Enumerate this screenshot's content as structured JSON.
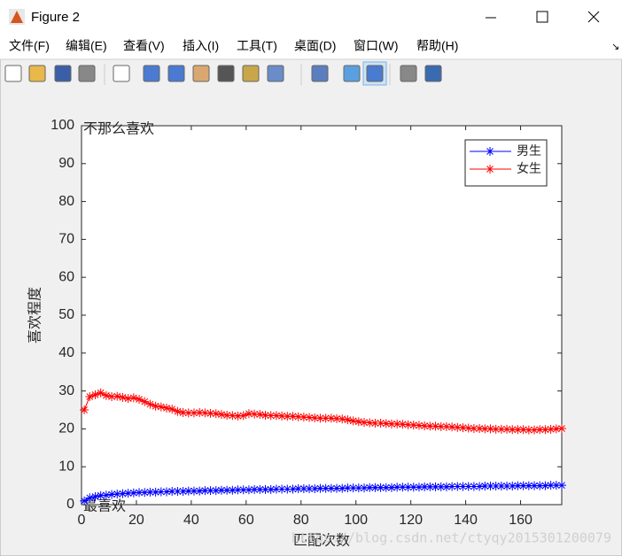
{
  "window": {
    "title": "Figure 2",
    "menu": [
      "文件(F)",
      "编辑(E)",
      "查看(V)",
      "插入(I)",
      "工具(T)",
      "桌面(D)",
      "窗口(W)",
      "帮助(H)"
    ],
    "watermark": "https://blog.csdn.net/ctyqy2015301200079"
  },
  "chart_data": {
    "type": "line",
    "xlabel": "匹配次数",
    "ylabel": "喜欢程度",
    "annotations": [
      "不那么喜欢",
      "最喜欢"
    ],
    "xlim": [
      0,
      175
    ],
    "xticks": [
      0,
      20,
      40,
      60,
      80,
      100,
      120,
      140,
      160
    ],
    "ylim": [
      0,
      100
    ],
    "yticks": [
      0,
      10,
      20,
      30,
      40,
      50,
      60,
      70,
      80,
      90,
      100
    ],
    "legend": "northeast",
    "marker": "*",
    "x": [
      1,
      3,
      5,
      7,
      9,
      11,
      13,
      15,
      17,
      19,
      21,
      23,
      25,
      27,
      29,
      31,
      33,
      35,
      37,
      39,
      41,
      43,
      45,
      47,
      49,
      51,
      53,
      55,
      57,
      59,
      61,
      63,
      65,
      67,
      69,
      71,
      73,
      75,
      77,
      79,
      81,
      83,
      85,
      87,
      89,
      91,
      93,
      95,
      97,
      99,
      101,
      103,
      105,
      107,
      109,
      111,
      113,
      115,
      117,
      119,
      121,
      123,
      125,
      127,
      129,
      131,
      133,
      135,
      137,
      139,
      141,
      143,
      145,
      147,
      149,
      151,
      153,
      155,
      157,
      159,
      161,
      163,
      165,
      167,
      169,
      171,
      173,
      175
    ],
    "series": [
      {
        "name": "男生",
        "color": "#0000ff",
        "values": [
          1.0,
          1.8,
          2.1,
          2.4,
          2.5,
          2.7,
          2.8,
          2.9,
          3.0,
          3.1,
          3.2,
          3.2,
          3.3,
          3.3,
          3.4,
          3.4,
          3.5,
          3.5,
          3.5,
          3.6,
          3.6,
          3.6,
          3.7,
          3.7,
          3.7,
          3.8,
          3.8,
          3.8,
          3.9,
          3.9,
          3.9,
          4.0,
          4.0,
          4.0,
          4.0,
          4.1,
          4.1,
          4.1,
          4.1,
          4.2,
          4.2,
          4.2,
          4.2,
          4.3,
          4.3,
          4.3,
          4.3,
          4.3,
          4.4,
          4.4,
          4.4,
          4.4,
          4.5,
          4.5,
          4.5,
          4.5,
          4.5,
          4.6,
          4.6,
          4.6,
          4.6,
          4.6,
          4.7,
          4.7,
          4.7,
          4.7,
          4.7,
          4.8,
          4.8,
          4.8,
          4.8,
          4.8,
          4.8,
          4.9,
          4.9,
          4.9,
          4.9,
          4.9,
          4.9,
          5.0,
          5.0,
          5.0,
          5.0,
          5.0,
          5.0,
          5.1,
          5.1,
          5.1
        ]
      },
      {
        "name": "女生",
        "color": "#ff0000",
        "values": [
          25.0,
          28.5,
          29.0,
          29.5,
          28.8,
          28.5,
          28.6,
          28.3,
          28.0,
          28.2,
          27.8,
          27.2,
          26.5,
          26.0,
          25.8,
          25.5,
          25.2,
          24.6,
          24.3,
          24.2,
          24.2,
          24.3,
          24.2,
          24.1,
          24.0,
          23.8,
          23.6,
          23.5,
          23.4,
          23.5,
          24.0,
          23.9,
          23.8,
          23.6,
          23.5,
          23.5,
          23.4,
          23.3,
          23.3,
          23.2,
          23.1,
          23.0,
          22.9,
          22.8,
          22.8,
          22.8,
          22.7,
          22.6,
          22.4,
          22.1,
          21.9,
          21.7,
          21.6,
          21.5,
          21.5,
          21.4,
          21.3,
          21.3,
          21.2,
          21.1,
          21.0,
          20.9,
          20.8,
          20.7,
          20.7,
          20.6,
          20.6,
          20.5,
          20.4,
          20.3,
          20.2,
          20.1,
          20.1,
          20.0,
          20.0,
          19.9,
          19.9,
          19.9,
          19.8,
          19.8,
          19.8,
          19.7,
          19.7,
          19.8,
          19.8,
          19.9,
          20.0,
          20.1
        ]
      }
    ]
  }
}
